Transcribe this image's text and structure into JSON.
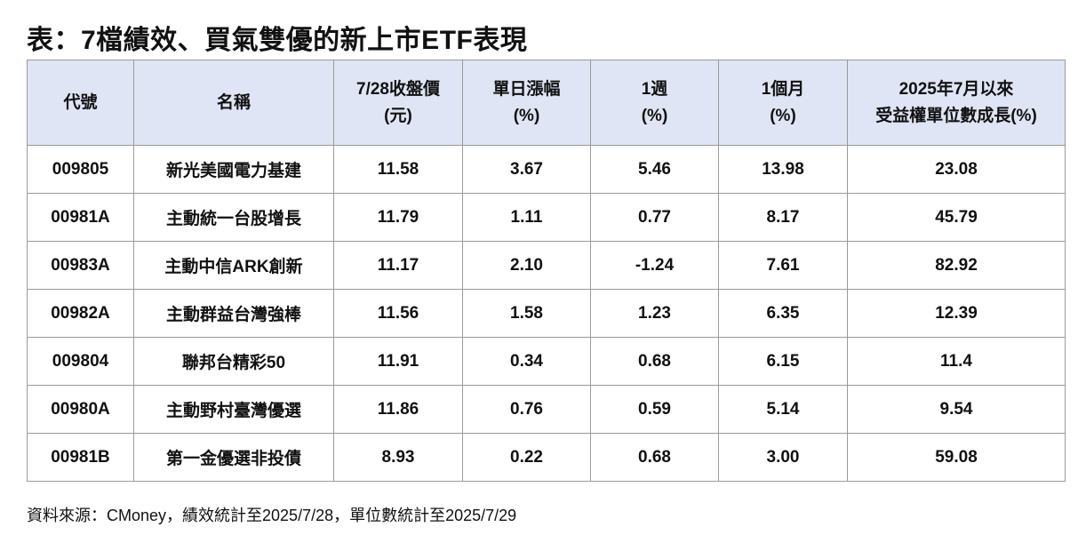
{
  "title": "表：7檔績效、買氣雙優的新上市ETF表現",
  "table": {
    "header": [
      [
        "代號"
      ],
      [
        "名稱"
      ],
      [
        "7/28收盤價",
        "(元)"
      ],
      [
        "單日漲幅",
        "(%)"
      ],
      [
        "1週",
        "(%)"
      ],
      [
        "1個月",
        "(%)"
      ],
      [
        "2025年7月以來",
        "受益權單位數成長(%)"
      ]
    ],
    "rows": [
      [
        "009805",
        "新光美國電力基建",
        "11.58",
        "3.67",
        "5.46",
        "13.98",
        "23.08"
      ],
      [
        "00981A",
        "主動統一台股增長",
        "11.79",
        "1.11",
        "0.77",
        "8.17",
        "45.79"
      ],
      [
        "00983A",
        "主動中信ARK創新",
        "11.17",
        "2.10",
        "-1.24",
        "7.61",
        "82.92"
      ],
      [
        "00982A",
        "主動群益台灣強棒",
        "11.56",
        "1.58",
        "1.23",
        "6.35",
        "12.39"
      ],
      [
        "009804",
        "聯邦台精彩50",
        "11.91",
        "0.34",
        "0.68",
        "6.15",
        "11.4"
      ],
      [
        "00980A",
        "主動野村臺灣優選",
        "11.86",
        "0.76",
        "0.59",
        "5.14",
        "9.54"
      ],
      [
        "00981B",
        "第一金優選非投債",
        "8.93",
        "0.22",
        "0.68",
        "3.00",
        "59.08"
      ]
    ]
  },
  "source": "資料來源：CMoney，績效統計至2025/7/28，單位數統計至2025/7/29"
}
